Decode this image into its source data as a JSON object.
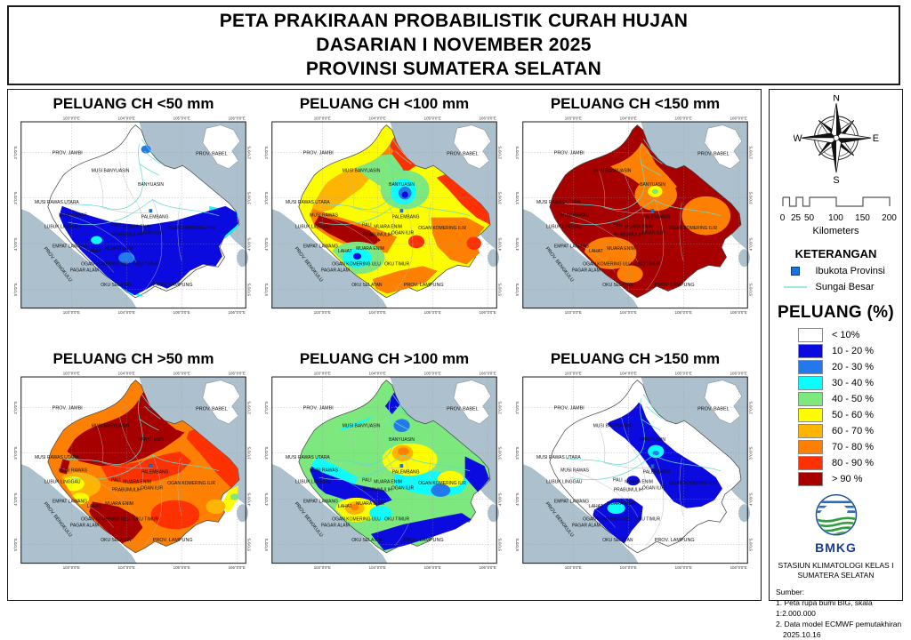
{
  "title": {
    "line1": "PETA PRAKIRAAN PROBABILISTIK CURAH HUJAN",
    "line2": "DASARIAN I NOVEMBER 2025",
    "line3": "PROVINSI SUMATERA SELATAN"
  },
  "panels": [
    {
      "id": "lt50",
      "title": "PELUANG CH <50 mm"
    },
    {
      "id": "lt100",
      "title": "PELUANG CH <100 mm"
    },
    {
      "id": "lt150",
      "title": "PELUANG CH <150 mm"
    },
    {
      "id": "gt50",
      "title": "PELUANG CH >50 mm"
    },
    {
      "id": "gt100",
      "title": "PELUANG CH >100 mm"
    },
    {
      "id": "gt150",
      "title": "PELUANG CH >150 mm"
    }
  ],
  "axis": {
    "lon_ticks": [
      "103°0'0\"E",
      "104°0'0\"E",
      "105°0'0\"E",
      "106°0'0\"E"
    ],
    "lat_ticks": [
      "2°0'0\"S",
      "3°0'0\"S",
      "4°0'0\"S",
      "5°0'0\"S"
    ]
  },
  "map_labels": [
    "PROV. JAMBI",
    "PROV. BABEL",
    "MUSI BANYUASIN",
    "BANYUASIN",
    "MUSI RAWAS UTARA",
    "MUSI RAWAS",
    "PALEMBANG",
    "LUBUK LINGGAU",
    "PALI",
    "MUARA ENIM",
    "OGAN KOMERING ILIR",
    "PRABUMULIH",
    "OGAN ILIR",
    "EMPAT LAWANG",
    "LAHAT",
    "MUARA ENIM",
    "OGAN KOMERING ULU",
    "OKU TIMUR",
    "PAGAR ALAM",
    "OKU SELATAN",
    "PROV. BENGKULU",
    "PROV. LAMPUNG"
  ],
  "compass": {
    "n": "N",
    "e": "E",
    "s": "S",
    "w": "W"
  },
  "scalebar": {
    "ticks": [
      "0",
      "25",
      "50",
      "100",
      "150",
      "200"
    ],
    "unit": "Kilometers"
  },
  "keterangan": {
    "title": "KETERANGAN",
    "items": [
      {
        "label": "Ibukota Provinsi",
        "symbol": "city-square",
        "color": "#1874dc"
      },
      {
        "label": "Sungai Besar",
        "symbol": "river-line",
        "color": "#9fe8e0"
      }
    ]
  },
  "legend": {
    "title": "PELUANG (%)",
    "classes": [
      {
        "label": "< 10%",
        "color": "#ffffff"
      },
      {
        "label": "10 - 20 %",
        "color": "#0b0be0"
      },
      {
        "label": "20 - 30 %",
        "color": "#2379ec"
      },
      {
        "label": "30 - 40 %",
        "color": "#0cfdfd"
      },
      {
        "label": "40 - 50 %",
        "color": "#7ce87d"
      },
      {
        "label": "50 - 60 %",
        "color": "#fdfd02"
      },
      {
        "label": "60 - 70 %",
        "color": "#fdb403"
      },
      {
        "label": "70 - 80 %",
        "color": "#fd8002"
      },
      {
        "label": "80 - 90 %",
        "color": "#fd3101"
      },
      {
        "label": "> 90 %",
        "color": "#a60000"
      }
    ]
  },
  "agency": {
    "logo_text": "BMKG",
    "station_line1": "STASIUN KLIMATOLOGI KELAS I",
    "station_line2": "SUMATERA SELATAN",
    "source_heading": "Sumber:",
    "source_line1": "1. Peta rupa bumi BIG, skala 1:2.000.000",
    "source_line2": "2. Data model ECMWF pemutakhiran",
    "source_line3": "2025.10.16"
  },
  "map_colors": {
    "sea": "#acc1cd",
    "land": "#ffffff",
    "river": "#5fdcd2",
    "boundary": "#b5b5b5"
  }
}
